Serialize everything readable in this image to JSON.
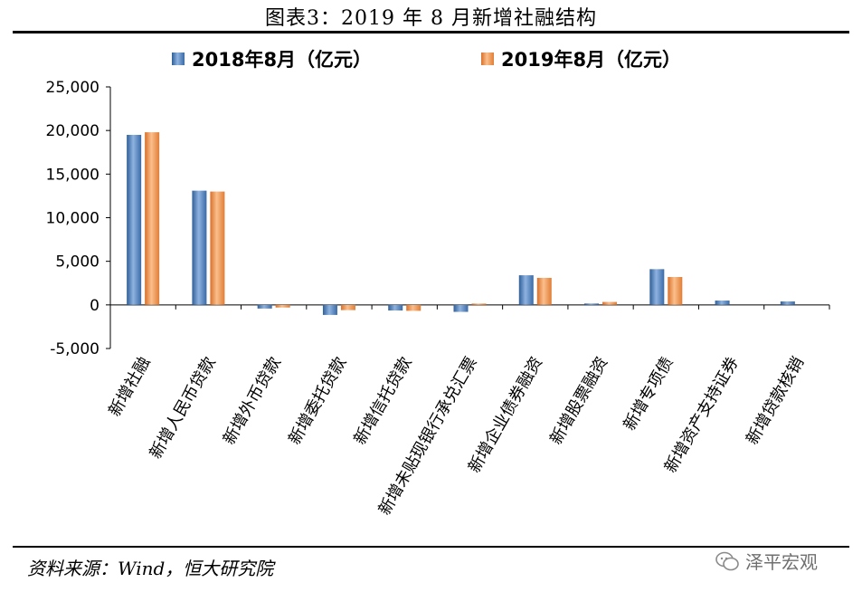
{
  "title": "图表3：2019 年 8 月新增社融结构",
  "source": "资料来源：Wind，恒大研究院",
  "watermark": "泽平宏观",
  "colors": {
    "series1": "#4f81bd",
    "series2": "#f79646"
  },
  "chart_data": {
    "type": "bar",
    "categories": [
      "新增社融",
      "新增人民币贷款",
      "新增外币贷款",
      "新增委托贷款",
      "新增信托贷款",
      "新增未贴现银行承兑汇票",
      "新增企业债券融资",
      "新增股票融资",
      "新增专项债",
      "新增资产支持证券",
      "新增贷款核销"
    ],
    "series": [
      {
        "name": "2018年8月（亿元）",
        "values": [
          19500,
          13100,
          -420,
          -1150,
          -640,
          -800,
          3400,
          160,
          4100,
          500,
          400
        ]
      },
      {
        "name": "2019年8月（亿元）",
        "values": [
          19800,
          13000,
          -300,
          -600,
          -680,
          150,
          3100,
          340,
          3200,
          0,
          0
        ]
      }
    ],
    "ylim": [
      -5000,
      25000
    ],
    "yticks": [
      25000,
      20000,
      15000,
      10000,
      5000,
      0,
      -5000
    ],
    "ytick_labels": [
      "25,000",
      "20,000",
      "15,000",
      "10,000",
      "5,000",
      "0",
      "-5,000"
    ],
    "legend_position": "top",
    "grid": false
  }
}
